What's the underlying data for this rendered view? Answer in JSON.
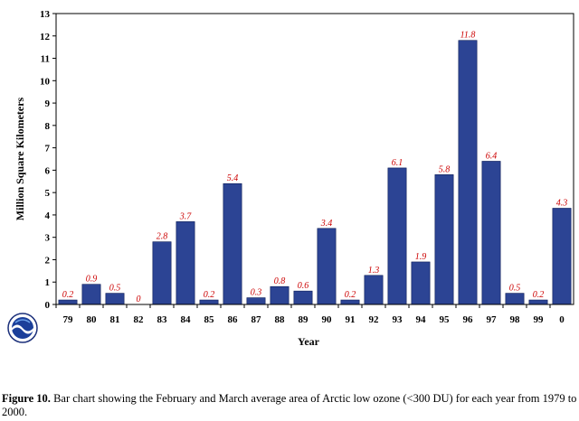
{
  "chart_data": {
    "type": "bar",
    "categories": [
      "79",
      "80",
      "81",
      "82",
      "83",
      "84",
      "85",
      "86",
      "87",
      "88",
      "89",
      "90",
      "91",
      "92",
      "93",
      "94",
      "95",
      "96",
      "97",
      "98",
      "99",
      "0"
    ],
    "values": [
      0.2,
      0.9,
      0.5,
      0,
      2.8,
      3.7,
      0.2,
      5.4,
      0.3,
      0.8,
      0.6,
      3.4,
      0.2,
      1.3,
      6.1,
      1.9,
      5.8,
      11.8,
      6.4,
      0.5,
      0.2,
      4.3
    ],
    "data_labels": [
      "0.2",
      "0.9",
      "0.5",
      "0",
      "2.8",
      "3.7",
      "0.2",
      "5.4",
      "0.3",
      "0.8",
      "0.6",
      "3.4",
      "0.2",
      "1.3",
      "6.1",
      "1.9",
      "5.8",
      "11.8",
      "6.4",
      "0.5",
      "0.2",
      "4.3"
    ],
    "xlabel": "Year",
    "ylabel": "Million Square Kilometers",
    "ylim": [
      0,
      13
    ],
    "yticks": [
      "0",
      "1",
      "2",
      "3",
      "4",
      "5",
      "6",
      "7",
      "8",
      "9",
      "10",
      "11",
      "12",
      "13"
    ],
    "grid": false,
    "bar_color": "#2c4494",
    "label_color": "#cc0000"
  },
  "caption": {
    "label": "Figure 10.",
    "text": " Bar chart showing the February and March average area of Arctic low ozone (<300 DU)  for each year from 1979 to 2000."
  },
  "logo": {
    "icon": "noaa-logo-icon"
  }
}
